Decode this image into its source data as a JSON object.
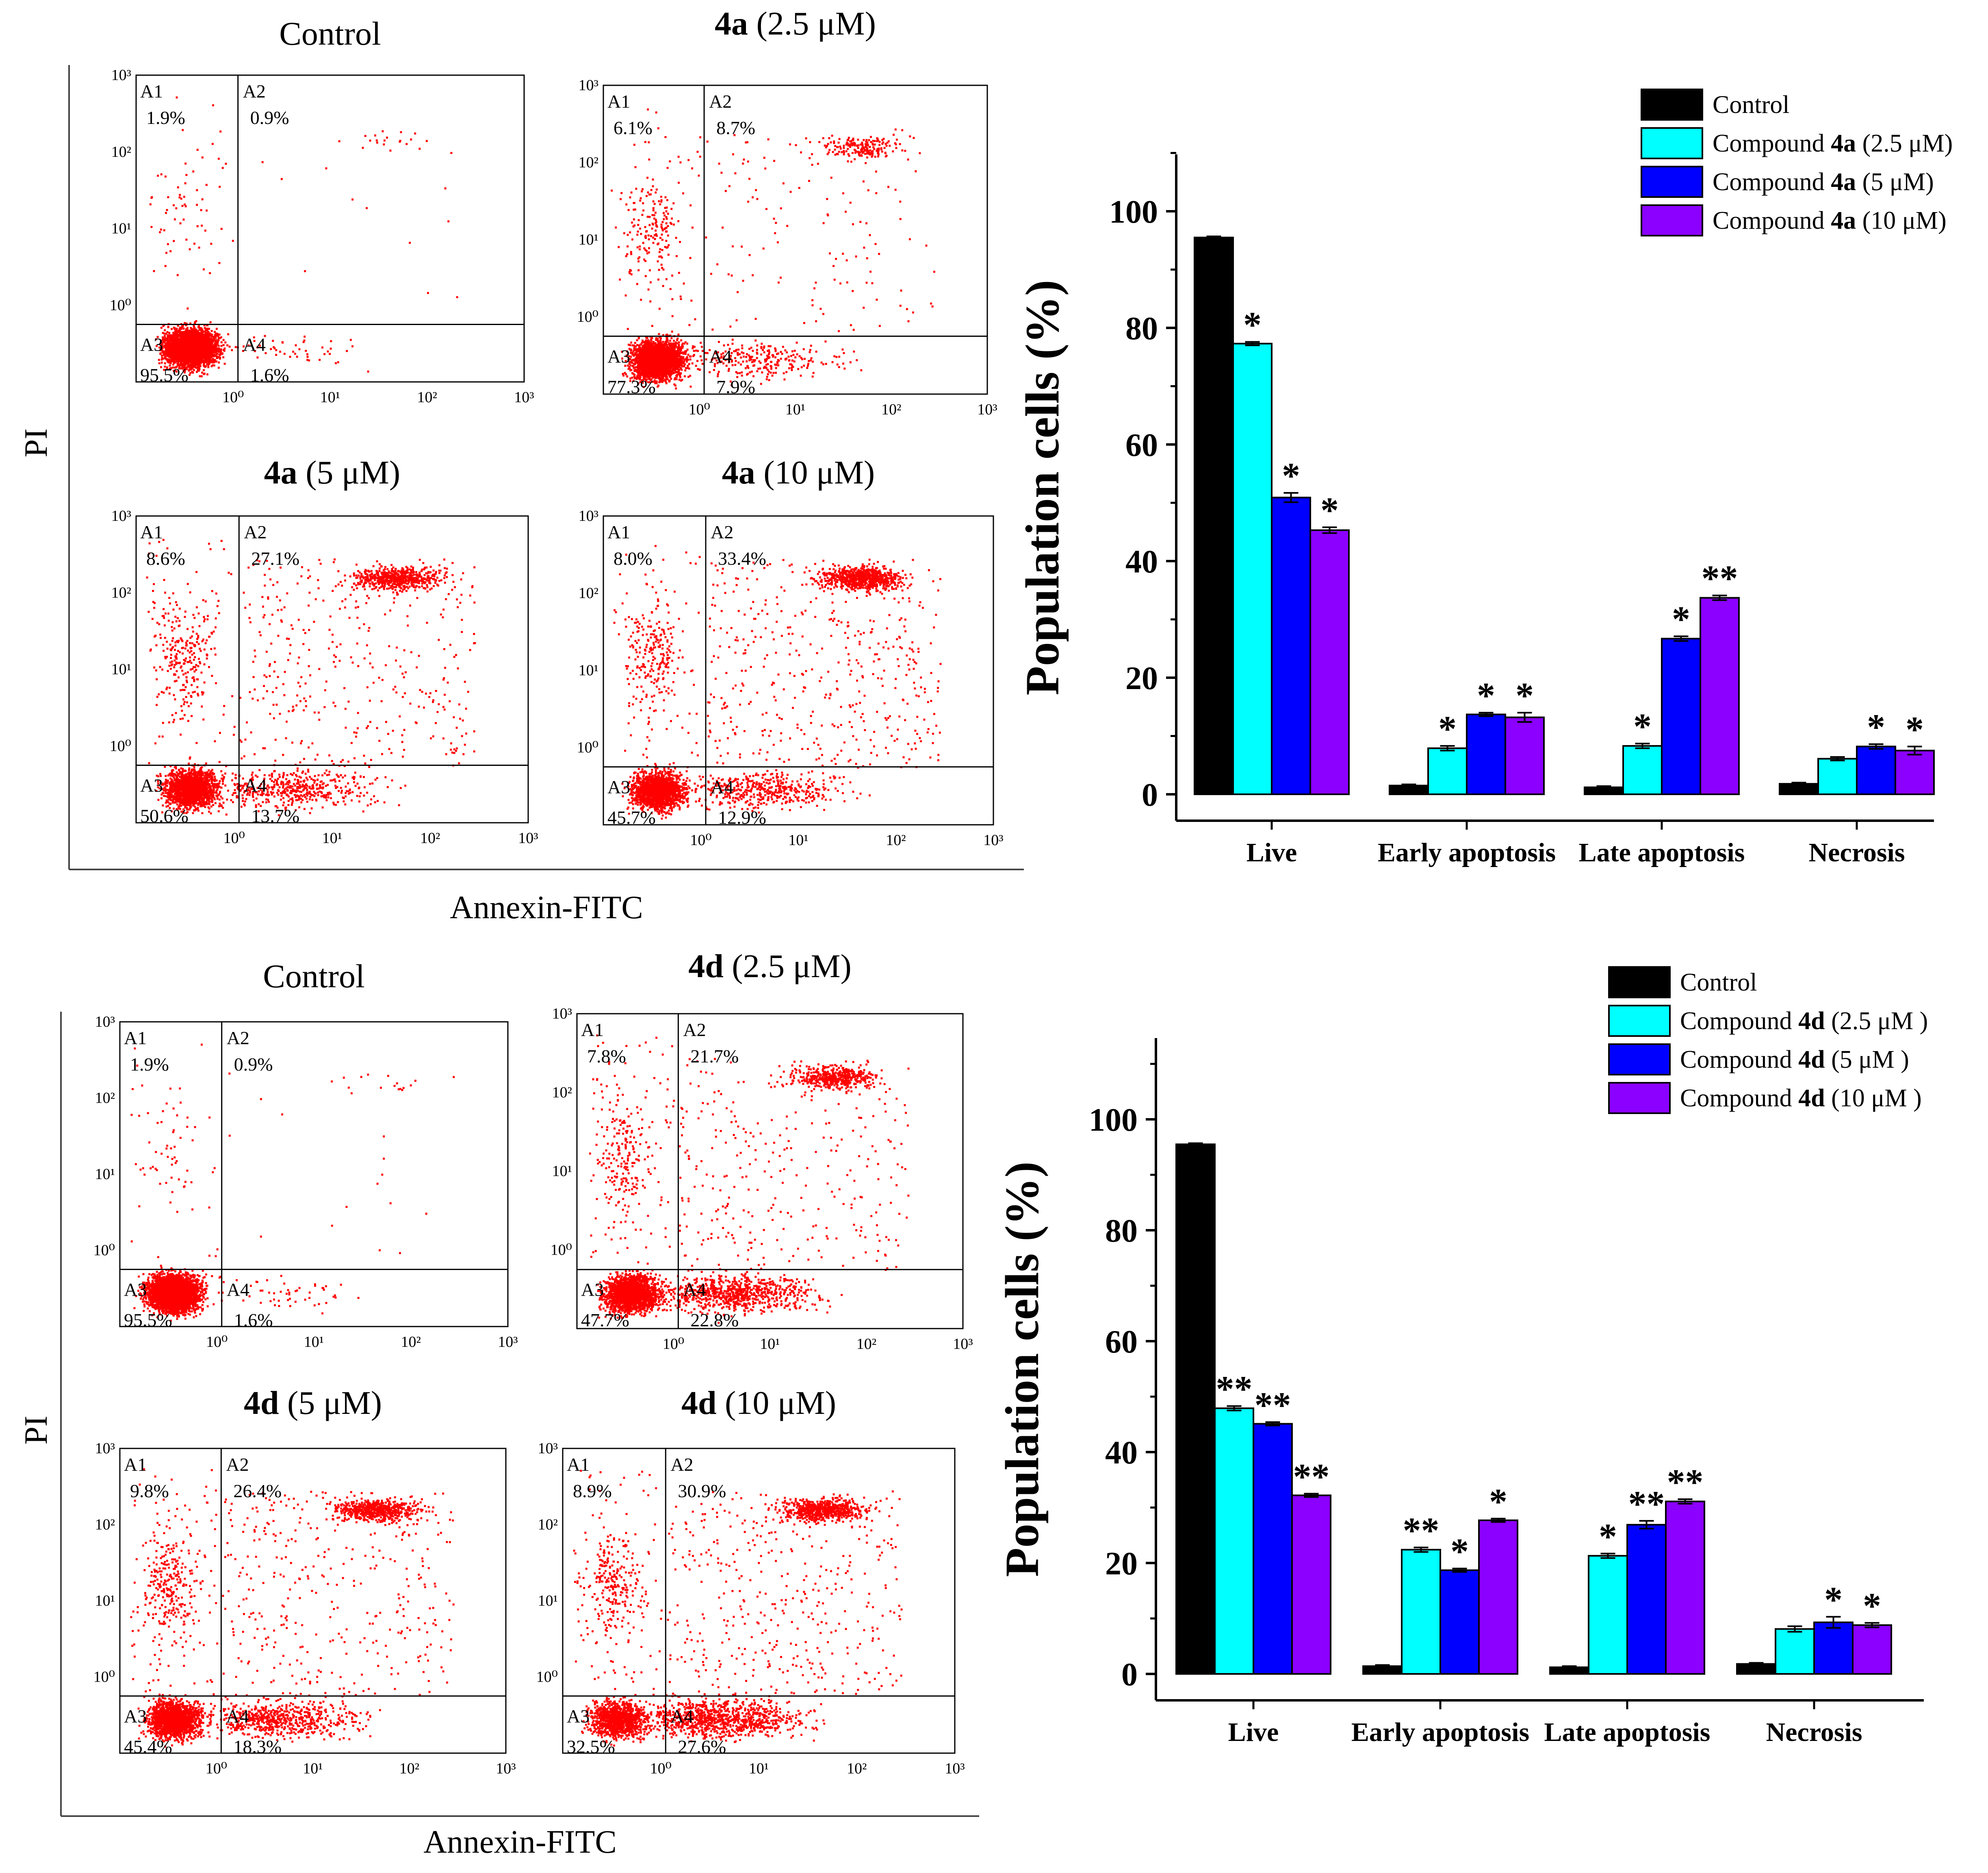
{
  "figure": {
    "annexin_label": "Annexin-FITC",
    "pi_label": "PI"
  },
  "chart_data": [
    {
      "type": "scatter",
      "subtype": "flow-cytometry-panel-grid",
      "panel_group": "4a",
      "xlabel": "Annexin-FITC",
      "ylabel": "PI",
      "x_scale": "log",
      "y_scale": "log",
      "x_range": [
        0.1,
        1000
      ],
      "y_range": [
        0.1,
        1000
      ],
      "panels": [
        {
          "title_bold": "",
          "title_rest": "Control",
          "quadrants": {
            "A1": "1.9%",
            "A2": "0.9%",
            "A3": "95.5%",
            "A4": "1.6%"
          },
          "ticks": {
            "x": [
              "10⁰",
              "10¹",
              "10²",
              "10³"
            ],
            "y": [
              "10⁰",
              "10¹",
              "10²",
              "10³"
            ]
          },
          "population": {
            "A1": 1.9,
            "A2": 0.9,
            "A3": 95.5,
            "A4": 1.6
          }
        },
        {
          "title_bold": "4a",
          "title_rest": " (2.5 μM)",
          "quadrants": {
            "A1": "6.1%",
            "A2": "8.7%",
            "A3": "77.3%",
            "A4": "7.9%"
          },
          "ticks": {
            "x": [
              "10⁰",
              "10¹",
              "10²",
              "10³"
            ],
            "y": [
              "10⁰",
              "10¹",
              "10²",
              "10³"
            ]
          },
          "population": {
            "A1": 6.1,
            "A2": 8.7,
            "A3": 77.3,
            "A4": 7.9
          }
        },
        {
          "title_bold": "4a",
          "title_rest": " (5 μM)",
          "quadrants": {
            "A1": "8.6%",
            "A2": "27.1%",
            "A3": "50.6%",
            "A4": "13.7%"
          },
          "ticks": {
            "x": [
              "10⁰",
              "10¹",
              "10²",
              "10³"
            ],
            "y": [
              "10⁰",
              "10¹",
              "10²",
              "10³"
            ]
          },
          "population": {
            "A1": 8.6,
            "A2": 27.1,
            "A3": 50.6,
            "A4": 13.7
          }
        },
        {
          "title_bold": "4a",
          "title_rest": " (10 μM)",
          "quadrants": {
            "A1": "8.0%",
            "A2": "33.4%",
            "A3": "45.7%",
            "A4": "12.9%"
          },
          "ticks": {
            "x": [
              "10⁰",
              "10¹",
              "10²",
              "10³"
            ],
            "y": [
              "10⁰",
              "10¹",
              "10²",
              "10³"
            ]
          },
          "population": {
            "A1": 8.0,
            "A2": 33.4,
            "A3": 45.7,
            "A4": 12.9
          }
        }
      ]
    },
    {
      "type": "bar",
      "panel_group": "4a",
      "ylabel": "Population cells (%)",
      "xlabel": "",
      "ylim": [
        -5,
        110
      ],
      "yticks": [
        0,
        20,
        40,
        60,
        80,
        100
      ],
      "categories": [
        "Live",
        "Early apoptosis",
        "Late apoptosis",
        "Necrosis"
      ],
      "legend": {
        "position": "top-right"
      },
      "series": [
        {
          "name": "Control",
          "label_pre": "Control",
          "label_bold": "",
          "label_post": "",
          "color": "#000000",
          "values": [
            95.5,
            1.5,
            1.2,
            1.8
          ],
          "errors": [
            0.2,
            0.2,
            0.2,
            0.2
          ],
          "stars": [
            "",
            "",
            "",
            ""
          ]
        },
        {
          "name": "Compound 4a (2.5 μM)",
          "label_pre": "Compound ",
          "label_bold": "4a",
          "label_post": " (2.5 μM)",
          "color": "#00ffff",
          "values": [
            77.3,
            7.9,
            8.3,
            6.1
          ],
          "errors": [
            0.3,
            0.4,
            0.4,
            0.3
          ],
          "stars": [
            "*",
            "*",
            "*",
            ""
          ]
        },
        {
          "name": "Compound 4a (5 μM)",
          "label_pre": "Compound ",
          "label_bold": "4a",
          "label_post": " (5 μM)",
          "color": "#0000ff",
          "values": [
            50.9,
            13.7,
            26.7,
            8.2
          ],
          "errors": [
            0.8,
            0.3,
            0.4,
            0.4
          ],
          "stars": [
            "*",
            "*",
            "*",
            "*"
          ]
        },
        {
          "name": "Compound 4a (10 μM)",
          "label_pre": "Compound ",
          "label_bold": "4a",
          "label_post": " (10 μM)",
          "color": "#8b00ff",
          "values": [
            45.3,
            13.2,
            33.7,
            7.5
          ],
          "errors": [
            0.5,
            0.8,
            0.4,
            0.7
          ],
          "stars": [
            "*",
            "*",
            "**",
            "*"
          ]
        }
      ]
    },
    {
      "type": "scatter",
      "subtype": "flow-cytometry-panel-grid",
      "panel_group": "4d",
      "xlabel": "Annexin-FITC",
      "ylabel": "PI",
      "x_scale": "log",
      "y_scale": "log",
      "x_range": [
        0.1,
        1000
      ],
      "y_range": [
        0.1,
        1000
      ],
      "panels": [
        {
          "title_bold": "",
          "title_rest": "Control",
          "quadrants": {
            "A1": "1.9%",
            "A2": "0.9%",
            "A3": "95.5%",
            "A4": "1.6%"
          },
          "ticks": {
            "x": [
              "10⁰",
              "10¹",
              "10²",
              "10³"
            ],
            "y": [
              "10⁰",
              "10¹",
              "10²",
              "10³"
            ]
          },
          "population": {
            "A1": 1.9,
            "A2": 0.9,
            "A3": 95.5,
            "A4": 1.6
          }
        },
        {
          "title_bold": "4d",
          "title_rest": " (2.5 μM)",
          "quadrants": {
            "A1": "7.8%",
            "A2": "21.7%",
            "A3": "47.7%",
            "A4": "22.8%"
          },
          "ticks": {
            "x": [
              "10⁰",
              "10¹",
              "10²",
              "10³"
            ],
            "y": [
              "10⁰",
              "10¹",
              "10²",
              "10³"
            ]
          },
          "population": {
            "A1": 7.8,
            "A2": 21.7,
            "A3": 47.7,
            "A4": 22.8
          }
        },
        {
          "title_bold": "4d",
          "title_rest": " (5 μM)",
          "quadrants": {
            "A1": "9.8%",
            "A2": "26.4%",
            "A3": "45.4%",
            "A4": "18.3%"
          },
          "ticks": {
            "x": [
              "10⁰",
              "10¹",
              "10²",
              "10³"
            ],
            "y": [
              "10⁰",
              "10¹",
              "10²",
              "10³"
            ]
          },
          "population": {
            "A1": 9.8,
            "A2": 26.4,
            "A3": 45.4,
            "A4": 18.3
          }
        },
        {
          "title_bold": "4d",
          "title_rest": " (10 μM)",
          "quadrants": {
            "A1": "8.9%",
            "A2": "30.9%",
            "A3": "32.5%",
            "A4": "27.6%"
          },
          "ticks": {
            "x": [
              "10⁰",
              "10¹",
              "10²",
              "10³"
            ],
            "y": [
              "10⁰",
              "10¹",
              "10²",
              "10³"
            ]
          },
          "population": {
            "A1": 8.9,
            "A2": 30.9,
            "A3": 32.5,
            "A4": 27.6
          }
        }
      ]
    },
    {
      "type": "bar",
      "panel_group": "4d",
      "ylabel": "Population cells (%)",
      "xlabel": "",
      "ylim": [
        -5,
        110
      ],
      "yticks": [
        0,
        20,
        40,
        60,
        80,
        100
      ],
      "categories": [
        "Live",
        "Early apoptosis",
        "Late apoptosis",
        "Necrosis"
      ],
      "legend": {
        "position": "top-right"
      },
      "series": [
        {
          "name": "Control",
          "label_pre": "Control",
          "label_bold": "",
          "label_post": "",
          "color": "#000000",
          "values": [
            95.5,
            1.4,
            1.2,
            1.8
          ],
          "errors": [
            0.2,
            0.2,
            0.2,
            0.2
          ],
          "stars": [
            "",
            "",
            "",
            ""
          ]
        },
        {
          "name": "Compound 4d (2.5 μM )",
          "label_pre": "Compound ",
          "label_bold": "4d",
          "label_post": " (2.5 μM )",
          "color": "#00ffff",
          "values": [
            47.9,
            22.4,
            21.3,
            8.1
          ],
          "errors": [
            0.4,
            0.4,
            0.4,
            0.5
          ],
          "stars": [
            "**",
            "**",
            "*",
            ""
          ]
        },
        {
          "name": "Compound 4d (5 μM )",
          "label_pre": "Compound ",
          "label_bold": "4d",
          "label_post": " (5 μM )",
          "color": "#0000ff",
          "values": [
            45.1,
            18.7,
            26.9,
            9.3
          ],
          "errors": [
            0.3,
            0.3,
            0.7,
            1.0
          ],
          "stars": [
            "**",
            "*",
            "**",
            "*"
          ]
        },
        {
          "name": "Compound 4d (10 μM )",
          "label_pre": "Compound ",
          "label_bold": "4d",
          "label_post": " (10 μM )",
          "color": "#8b00ff",
          "values": [
            32.2,
            27.7,
            31.1,
            8.8
          ],
          "errors": [
            0.3,
            0.3,
            0.4,
            0.4
          ],
          "stars": [
            "**",
            "*",
            "**",
            "*"
          ]
        }
      ]
    }
  ]
}
